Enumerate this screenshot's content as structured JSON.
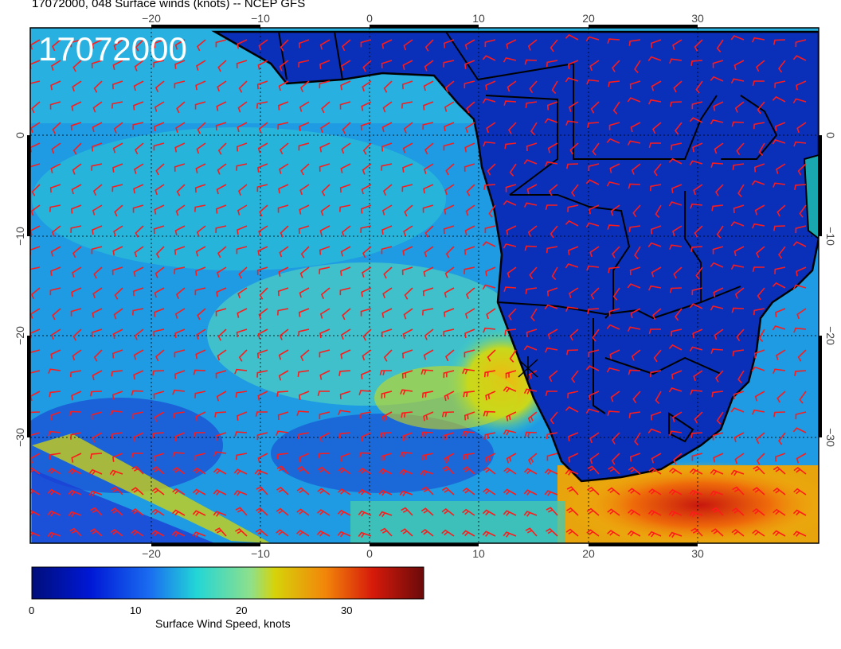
{
  "title": "17072000, 048 Surface winds (knots) -- NCEP GFS",
  "overlay_date": "17072000",
  "map": {
    "lon_range": [
      -31,
      41
    ],
    "lat_range": [
      -40,
      11
    ],
    "x_ticks": [
      "−20",
      "−10",
      "0",
      "10",
      "20",
      "30"
    ],
    "y_ticks": [
      "0",
      "−10",
      "−20",
      "−30"
    ],
    "colors": {
      "calm": "#1a2fd6",
      "moderate": "#2ad0d8",
      "strong": "#f2c511",
      "extreme": "#c8170e",
      "barb": "#ff1a1a",
      "land_outline": "#000000"
    }
  },
  "colorbar": {
    "label": "Surface Wind Speed, knots",
    "ticks": [
      "0",
      "10",
      "20",
      "30"
    ],
    "range": [
      0,
      37
    ]
  }
}
